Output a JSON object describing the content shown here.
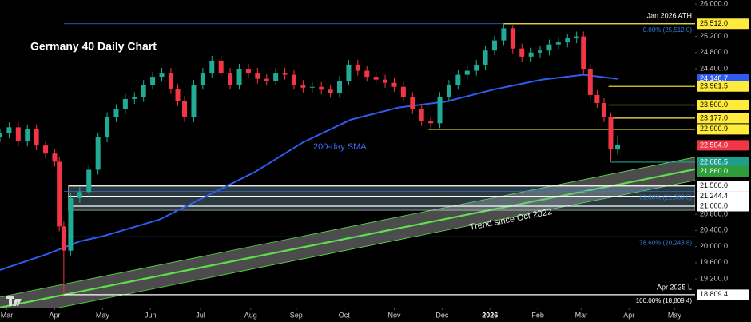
{
  "chart_data": {
    "type": "candlestick",
    "title": "Germany 40 Daily Chart",
    "up_color": "#22ab94",
    "down_color": "#f23645",
    "x": [
      0,
      4,
      8,
      12,
      16,
      20,
      24,
      26,
      28,
      31,
      35,
      39,
      43,
      47,
      51,
      55,
      59,
      63,
      67,
      71,
      75,
      78,
      81,
      85,
      89,
      93,
      97,
      101,
      105,
      109,
      113,
      117,
      121,
      125,
      129,
      133,
      137,
      141,
      145,
      149,
      153,
      157,
      161,
      165,
      169,
      173,
      177,
      181,
      185,
      189,
      193,
      197,
      201,
      205,
      209,
      213,
      217,
      221,
      225,
      229,
      233,
      237,
      241,
      245,
      249,
      253,
      256,
      259,
      262,
      265,
      268,
      271
    ],
    "open": [
      22700,
      22800,
      22950,
      22600,
      22900,
      22500,
      22300,
      22100,
      20500,
      19900,
      21200,
      21350,
      21900,
      22700,
      23200,
      23400,
      23650,
      23700,
      24000,
      24200,
      24300,
      23900,
      23600,
      23200,
      24000,
      24300,
      24600,
      24300,
      24000,
      24400,
      24300,
      24150,
      24100,
      24300,
      24250,
      24000,
      23930,
      23950,
      23880,
      23800,
      24100,
      24500,
      24350,
      24200,
      24130,
      24050,
      23950,
      23700,
      23400,
      23100,
      23050,
      23700,
      24000,
      24250,
      24350,
      24500,
      24850,
      25100,
      25400,
      24900,
      24700,
      24800,
      24850,
      25000,
      25050,
      25150,
      25200,
      24400,
      23750,
      23550,
      23200,
      22400
    ],
    "high": [
      22920,
      23070,
      23070,
      23020,
      23020,
      22620,
      22420,
      22220,
      20620,
      21320,
      21470,
      22020,
      22820,
      23320,
      23520,
      23770,
      23820,
      24120,
      24320,
      24420,
      24420,
      24020,
      23720,
      24120,
      24420,
      24720,
      24720,
      24420,
      24520,
      24520,
      24420,
      24270,
      24420,
      24420,
      24370,
      24120,
      24070,
      24070,
      24000,
      24220,
      24620,
      24620,
      24470,
      24320,
      24250,
      24170,
      24070,
      23820,
      23520,
      23220,
      23820,
      24120,
      24370,
      24470,
      24620,
      24970,
      25220,
      25512,
      25480,
      25020,
      24920,
      24970,
      25120,
      25170,
      25270,
      25320,
      25320,
      24520,
      23870,
      23670,
      23320,
      22750
    ],
    "low": [
      22580,
      22680,
      22480,
      22480,
      22380,
      22180,
      21980,
      20380,
      18809,
      19780,
      21080,
      21230,
      21780,
      22580,
      23080,
      23280,
      23530,
      23580,
      23880,
      24080,
      23780,
      23480,
      23080,
      23080,
      23880,
      24180,
      24180,
      23880,
      23880,
      24180,
      24030,
      23980,
      23980,
      24130,
      23880,
      23810,
      23810,
      23760,
      23680,
      23680,
      23980,
      24230,
      24080,
      24010,
      23930,
      23830,
      23580,
      23280,
      22980,
      22900,
      22930,
      23580,
      23880,
      24130,
      24230,
      24380,
      24730,
      24980,
      24780,
      24580,
      24580,
      24680,
      24730,
      24880,
      24930,
      25030,
      24280,
      23630,
      23430,
      23080,
      22088,
      22280
    ],
    "close": [
      22800,
      22950,
      22600,
      22900,
      22500,
      22300,
      22100,
      20500,
      19900,
      21200,
      21350,
      21900,
      22700,
      23200,
      23400,
      23650,
      23700,
      24000,
      24200,
      24300,
      23900,
      23600,
      23200,
      24000,
      24300,
      24600,
      24300,
      24000,
      24400,
      24300,
      24150,
      24100,
      24300,
      24250,
      24000,
      23930,
      23950,
      23880,
      23800,
      24100,
      24500,
      24350,
      24200,
      24130,
      24050,
      23950,
      23700,
      23400,
      23100,
      23050,
      23700,
      24000,
      24250,
      24350,
      24500,
      24850,
      25100,
      25400,
      24900,
      24700,
      24800,
      24850,
      25000,
      25050,
      25150,
      25200,
      24400,
      23750,
      23550,
      23200,
      22400,
      22504
    ],
    "xlim": [
      0,
      305
    ],
    "xticks": [
      {
        "value": 3,
        "label": "Mar"
      },
      {
        "value": 24,
        "label": "Apr"
      },
      {
        "value": 45,
        "label": "May"
      },
      {
        "value": 66,
        "label": "Jun"
      },
      {
        "value": 88,
        "label": "Jul"
      },
      {
        "value": 110,
        "label": "Aug"
      },
      {
        "value": 130,
        "label": "Sep"
      },
      {
        "value": 151,
        "label": "Oct"
      },
      {
        "value": 173,
        "label": "Nov"
      },
      {
        "value": 194,
        "label": "Dec"
      },
      {
        "value": 215,
        "label": "2026"
      },
      {
        "value": 236,
        "label": "Feb"
      },
      {
        "value": 255,
        "label": "Mar"
      },
      {
        "value": 276,
        "label": "Apr"
      },
      {
        "value": 296,
        "label": "May"
      }
    ],
    "ylim": [
      18490,
      26100
    ],
    "yticks": [
      {
        "value": 26000,
        "label": "26,000.0"
      },
      {
        "value": 25200,
        "label": "25,200.0"
      },
      {
        "value": 24800,
        "label": "24,800.0"
      },
      {
        "value": 24400,
        "label": "24,400.0"
      },
      {
        "value": 20800,
        "label": "20,800.0"
      },
      {
        "value": 20400,
        "label": "20,400.0"
      },
      {
        "value": 20000,
        "label": "20,000.0"
      },
      {
        "value": 19600,
        "label": "19,600.0"
      },
      {
        "value": 19200,
        "label": "19,200.0"
      }
    ],
    "sma": {
      "name": "200-day SMA",
      "color": "#2f5cf0",
      "x": [
        0,
        21,
        35,
        46,
        70,
        91,
        112,
        133,
        154,
        175,
        196,
        217,
        238,
        256,
        271
      ],
      "values": [
        19420,
        19820,
        20130,
        20270,
        20670,
        21260,
        21850,
        22580,
        23140,
        23440,
        23590,
        23890,
        24130,
        24250,
        24148.7
      ]
    },
    "channel": {
      "label": "Trend since Oct 2022",
      "color": "#5ee04a",
      "x": [
        0,
        305
      ],
      "upper": [
        18750,
        22210
      ],
      "middle": [
        18492,
        21913
      ],
      "lower": [
        18195,
        21637
      ]
    },
    "zone": {
      "from": 20900,
      "to": 21500,
      "start": 30
    },
    "fib": [
      {
        "value": 25512,
        "label": "0.00% (25,512.0)",
        "color": "#2f7bd8",
        "start": 28
      },
      {
        "value": 21369.8,
        "label": "61.80% (21,369.8)",
        "color": "#2f7bd8",
        "start": 28
      },
      {
        "value": 20243.8,
        "label": "78.60% (20,243.8)",
        "color": "#2f7bd8",
        "start": 28
      },
      {
        "value": 18809.4,
        "label": "100.00% (18,809.4)",
        "color": "#ffffff",
        "start": 28
      }
    ],
    "levels": [
      {
        "value": 25512,
        "label": "25,512.0",
        "color": "#ffeb3b",
        "start": 221
      },
      {
        "value": 24148.7,
        "label": "24,148.7",
        "color": "#2f5cf0"
      },
      {
        "value": 23961.5,
        "label": "23,961.5",
        "color": "#ffeb3b",
        "start": 267
      },
      {
        "value": 23500,
        "label": "23,500.0",
        "color": "#ffeb3b",
        "start": 267
      },
      {
        "value": 23177,
        "label": "23,177.0",
        "color": "#ffeb3b",
        "start": 267
      },
      {
        "value": 22900.9,
        "label": "22,900.9",
        "color": "#ffeb3b",
        "start": 188
      },
      {
        "value": 22504,
        "label": "22,504.0",
        "color": "#f23645"
      },
      {
        "value": 22088.5,
        "label": "22,088.5",
        "color": "#1f9e8a",
        "start": 268
      },
      {
        "value": 21860,
        "label": "21,860.0",
        "color": "#2e9e3a"
      },
      {
        "value": 21500,
        "label": "21,500.0",
        "color": "#ffffff",
        "start": 30
      },
      {
        "value": 21244.4,
        "label": "21,244.4",
        "color": "#ffffff",
        "start": 30
      },
      {
        "value": 21000,
        "label": "21,000.0",
        "color": "#ffffff",
        "start": 30
      },
      {
        "value": 18809.4,
        "label": "18,809.4",
        "color": "#ffffff",
        "start": 28
      }
    ],
    "annotations": {
      "ath": "Jan 2026 ATH",
      "low": "Apr 2025 L"
    }
  }
}
